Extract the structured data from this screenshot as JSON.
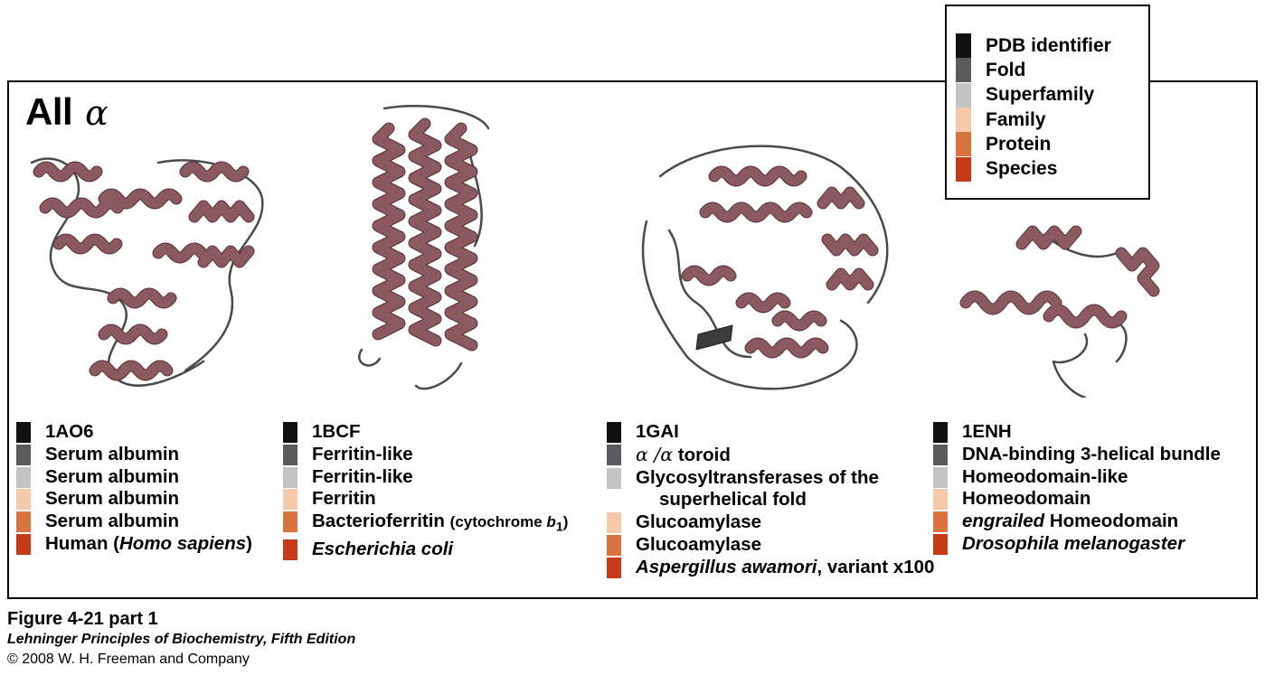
{
  "panel": {
    "title": "All",
    "title_symbol": "α"
  },
  "legend": {
    "items": [
      {
        "label": "PDB identifier",
        "color": "#111111"
      },
      {
        "label": "Fold",
        "color": "#5a5a5c"
      },
      {
        "label": "Superfamily",
        "color": "#c4c4c4"
      },
      {
        "label": "Family",
        "color": "#f5c9a9"
      },
      {
        "label": "Protein",
        "color": "#d9743e"
      },
      {
        "label": "Species",
        "color": "#c53a17"
      }
    ]
  },
  "proteins": [
    {
      "pdb": "1AO6",
      "fold": "Serum albumin",
      "superfamily": "Serum albumin",
      "family": "Serum albumin",
      "protein": "Serum albumin",
      "species_prefix": "Human (",
      "species_italic": "Homo sapiens",
      "species_suffix": ")"
    },
    {
      "pdb": "1BCF",
      "fold": "Ferritin-like",
      "superfamily": "Ferritin-like",
      "family": "Ferritin",
      "protein": "Bacterioferritin",
      "protein_note_prefix": "(cytochrome ",
      "protein_note_italic": "b",
      "protein_note_sub": "1",
      "protein_note_suffix": ")",
      "species_italic": "Escherichia coli"
    },
    {
      "pdb": "1GAI",
      "fold_symbol": "α /α",
      "fold_text": " toroid",
      "superfamily_line1": "Glycosyltransferases of the",
      "superfamily_line2": "superhelical fold",
      "family": "Glucoamylase",
      "protein": "Glucoamylase",
      "species_italic": "Aspergillus awamori",
      "species_suffix": ", variant x100"
    },
    {
      "pdb": "1ENH",
      "fold": "DNA-binding 3-helical bundle",
      "superfamily": "Homeodomain-like",
      "family": "Homeodomain",
      "protein_italic": "engrailed",
      "protein_suffix": " Homeodomain",
      "species_italic": "Drosophila melanogaster"
    }
  ],
  "caption": {
    "figure": "Figure 4-21 part 1",
    "book": "Lehninger Principles of Biochemistry, Fifth Edition",
    "copyright": "© 2008 W. H. Freeman and Company"
  }
}
